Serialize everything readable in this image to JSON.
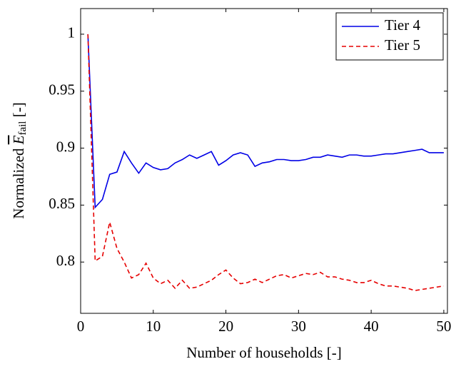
{
  "chart_data": {
    "type": "line",
    "xlabel": "Number of households [-]",
    "ylabel": {
      "prefix": "Normalized",
      "symbol": "E",
      "subscript": "fail",
      "suffix": "[-]"
    },
    "x": [
      1,
      2,
      3,
      4,
      5,
      6,
      7,
      8,
      9,
      10,
      11,
      12,
      13,
      14,
      15,
      16,
      17,
      18,
      19,
      20,
      21,
      22,
      23,
      24,
      25,
      26,
      27,
      28,
      29,
      30,
      31,
      32,
      33,
      34,
      35,
      36,
      37,
      38,
      39,
      40,
      41,
      42,
      43,
      44,
      45,
      46,
      47,
      48,
      49,
      50
    ],
    "series": [
      {
        "name": "Tier 4",
        "color": "#0000e6",
        "dash": "solid",
        "values": [
          1.0,
          0.848,
          0.855,
          0.877,
          0.879,
          0.897,
          0.887,
          0.878,
          0.887,
          0.883,
          0.881,
          0.882,
          0.887,
          0.89,
          0.894,
          0.891,
          0.894,
          0.897,
          0.885,
          0.889,
          0.894,
          0.896,
          0.894,
          0.884,
          0.887,
          0.888,
          0.89,
          0.89,
          0.889,
          0.889,
          0.89,
          0.892,
          0.892,
          0.894,
          0.893,
          0.892,
          0.894,
          0.894,
          0.893,
          0.893,
          0.894,
          0.895,
          0.895,
          0.896,
          0.897,
          0.898,
          0.899,
          0.896,
          0.896,
          0.896
        ]
      },
      {
        "name": "Tier 5",
        "color": "#e60000",
        "dash": "dashed",
        "values": [
          1.0,
          0.801,
          0.805,
          0.835,
          0.812,
          0.8,
          0.786,
          0.789,
          0.799,
          0.786,
          0.781,
          0.784,
          0.777,
          0.784,
          0.777,
          0.778,
          0.781,
          0.784,
          0.789,
          0.793,
          0.786,
          0.781,
          0.782,
          0.785,
          0.782,
          0.785,
          0.788,
          0.789,
          0.786,
          0.788,
          0.79,
          0.789,
          0.791,
          0.787,
          0.787,
          0.785,
          0.784,
          0.782,
          0.782,
          0.784,
          0.781,
          0.779,
          0.779,
          0.778,
          0.777,
          0.775,
          0.776,
          0.777,
          0.778,
          0.779
        ]
      }
    ],
    "xlim": [
      0,
      50.5
    ],
    "xticks": [
      0,
      10,
      20,
      30,
      40,
      50
    ],
    "ylim": [
      0.755,
      1.0225
    ],
    "yticks": [
      0.8,
      0.85,
      0.9,
      0.95,
      1
    ],
    "legend": "top-right"
  }
}
